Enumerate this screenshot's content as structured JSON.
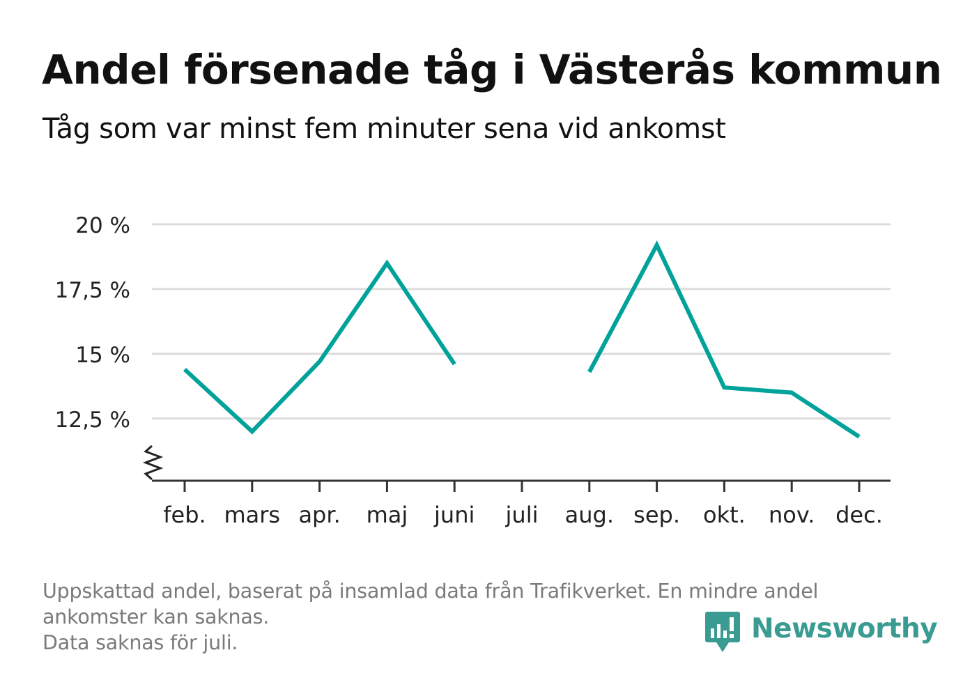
{
  "header": {
    "title": "Andel försenade tåg i Västerås kommun",
    "subtitle": "Tåg som var minst fem minuter sena vid ankomst"
  },
  "chart_data": {
    "type": "line",
    "title": "Andel försenade tåg i Västerås kommun",
    "subtitle": "Tåg som var minst fem minuter sena vid ankomst",
    "xlabel": "",
    "ylabel": "",
    "categories": [
      "feb.",
      "mars",
      "apr.",
      "maj",
      "juni",
      "juli",
      "aug.",
      "sep.",
      "okt.",
      "nov.",
      "dec."
    ],
    "series": [
      {
        "values": [
          14.4,
          12.0,
          14.7,
          18.5,
          14.6,
          null,
          14.3,
          19.2,
          13.7,
          13.5,
          11.8
        ]
      }
    ],
    "ylim": [
      10.1,
      20
    ],
    "yticks": [
      12.5,
      15,
      17.5,
      20
    ],
    "ytick_labels": [
      "12,5 %",
      "15 %",
      "17,5 %",
      "20 %"
    ],
    "axis_break": true,
    "grid": true,
    "line_color": "#00a299"
  },
  "footer": {
    "note_lines": [
      "Uppskattad andel, baserat på insamlad data från Trafikverket. En mindre andel",
      "ankomster kan saknas.",
      "Data saknas för juli."
    ],
    "brand": "Newsworthy",
    "brand_color": "#3a9b93"
  }
}
